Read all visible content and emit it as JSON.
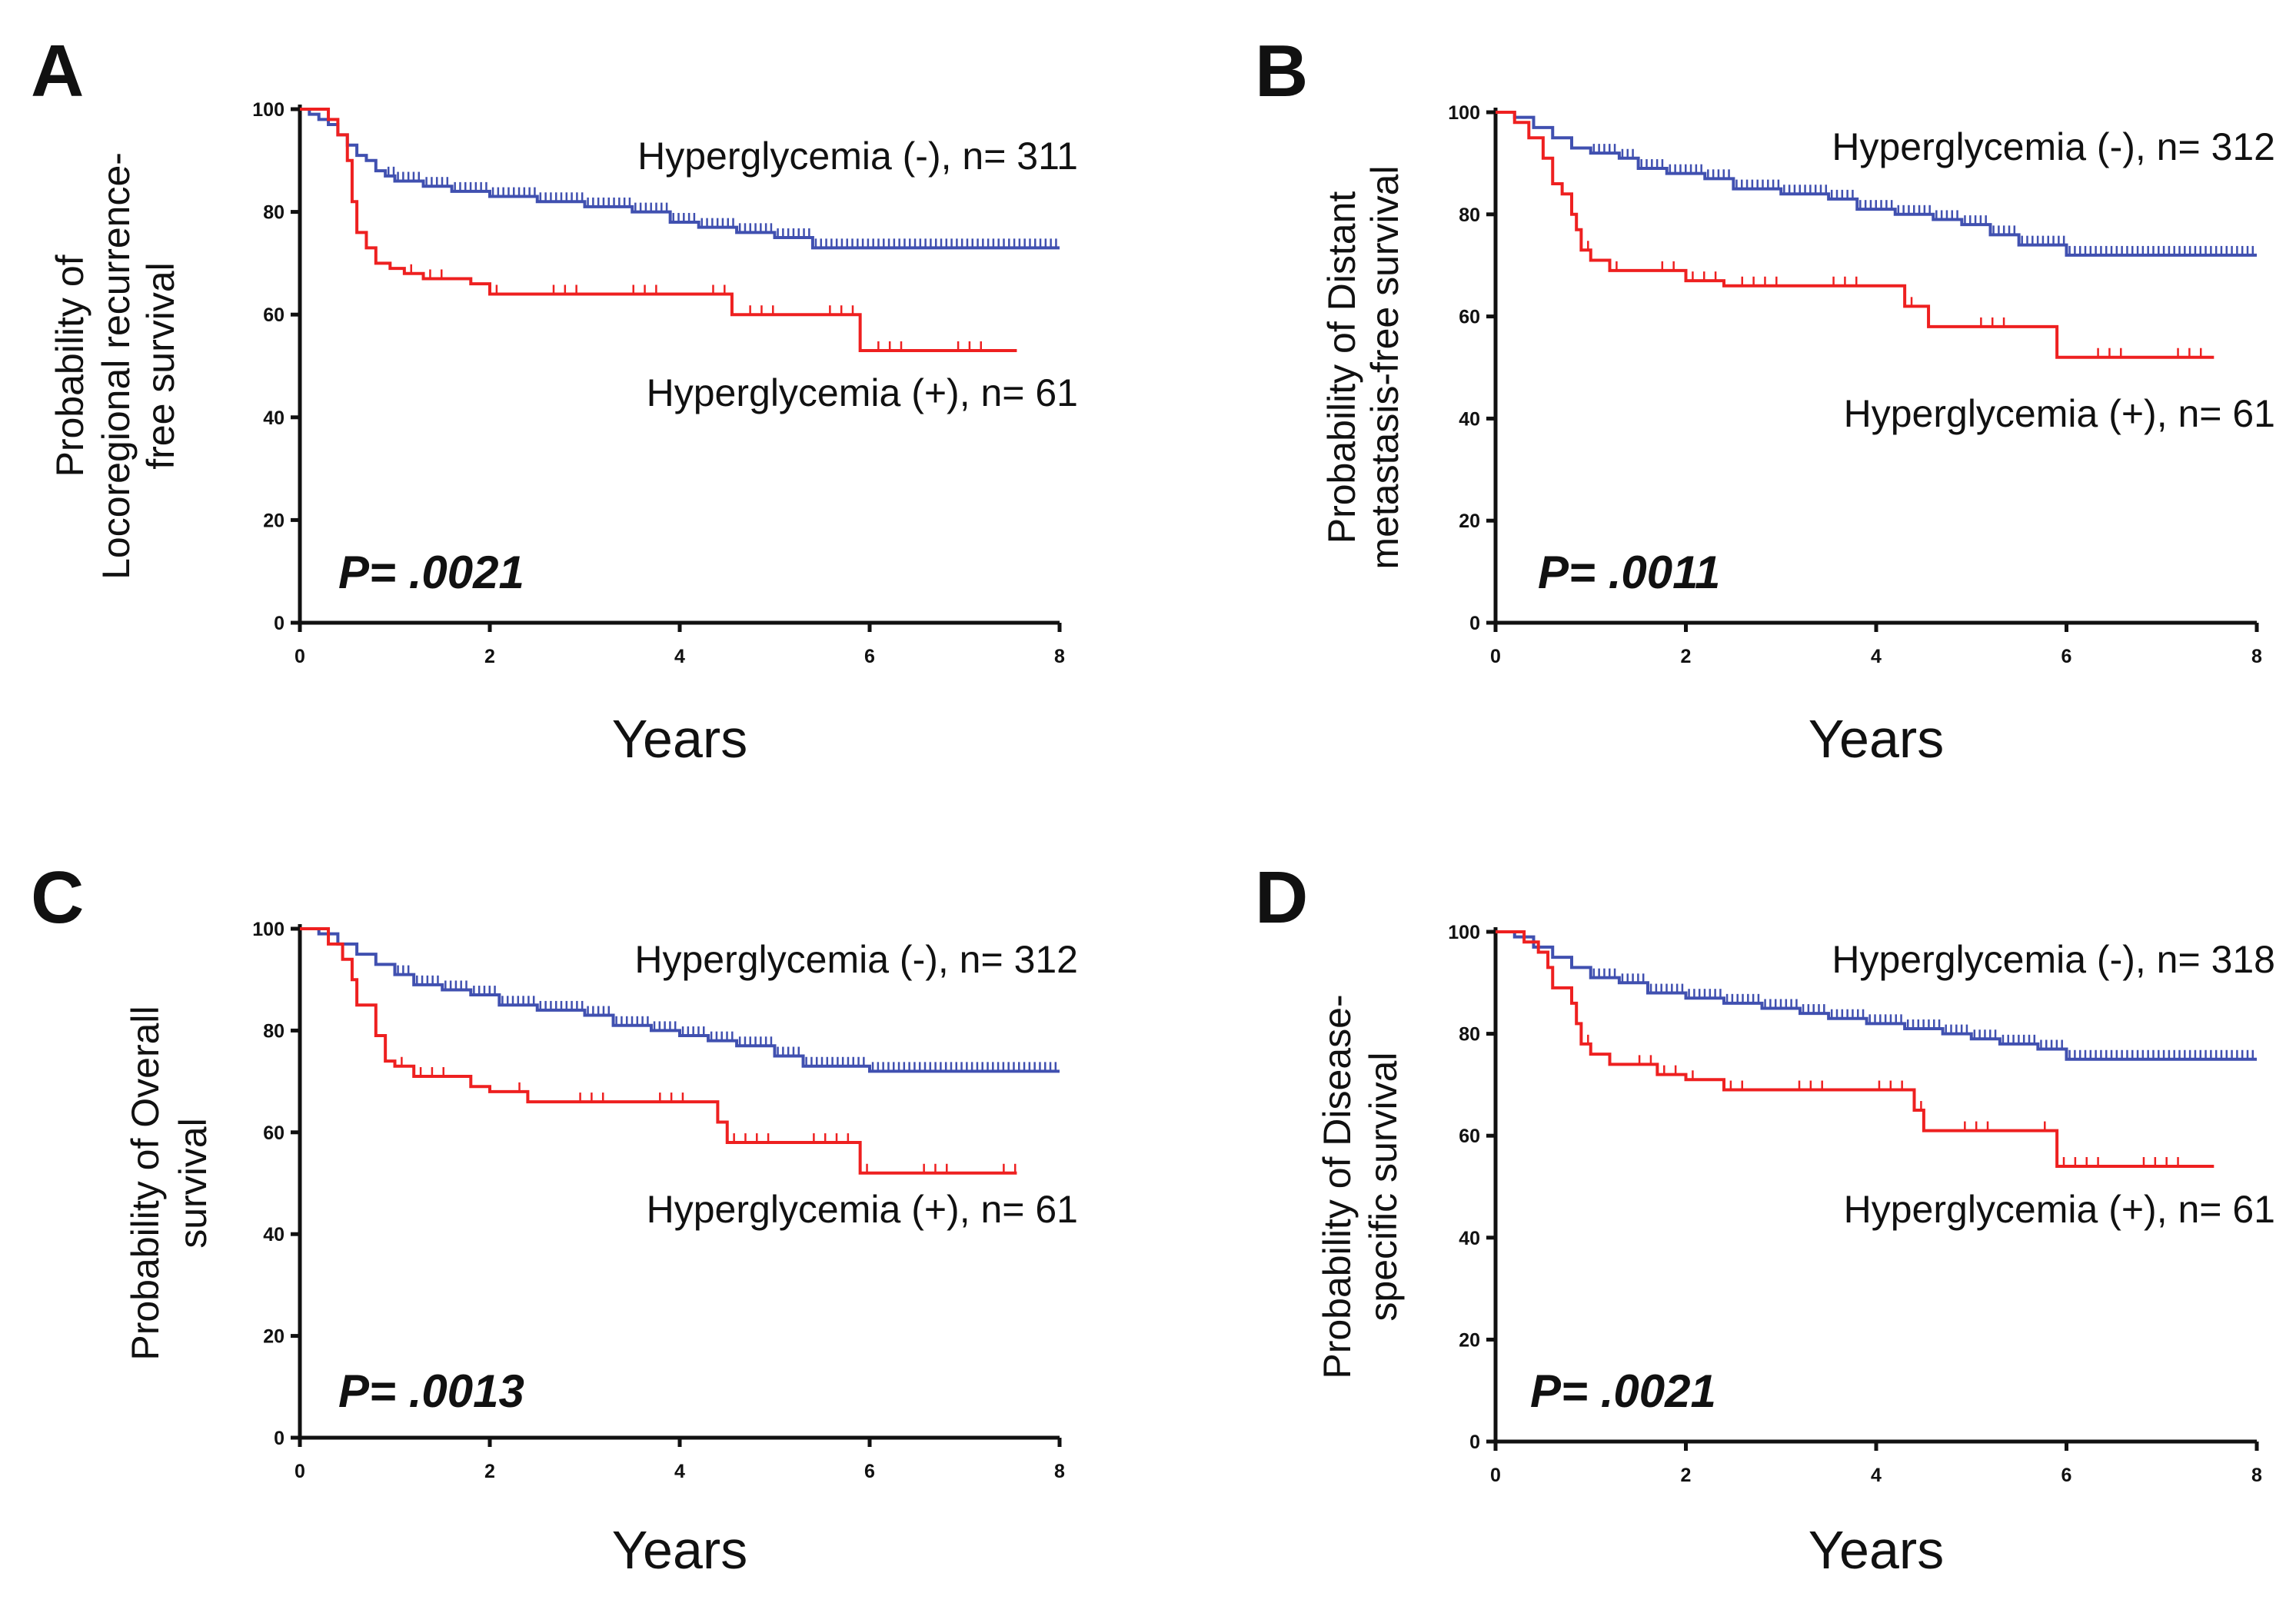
{
  "colors": {
    "neg": "#4050b0",
    "pos": "#ee2020",
    "axis": "#111111"
  },
  "chart_data": [
    {
      "type": "line",
      "panel": "A",
      "ylabel": [
        "Probability of",
        "Locoregional recurrence-",
        "free survival"
      ],
      "xlabel": "Years",
      "xlim": [
        0,
        8
      ],
      "ylim": [
        0,
        100
      ],
      "xticks": [
        0,
        2,
        4,
        6,
        8
      ],
      "yticks": [
        0,
        20,
        40,
        60,
        80,
        100
      ],
      "p_value": "P= .0021",
      "series": [
        {
          "name": "Hyperglycemia (-), n= 311",
          "color_key": "neg",
          "label_position": "top-right",
          "steps": [
            [
              0,
              100
            ],
            [
              0.1,
              99
            ],
            [
              0.2,
              98
            ],
            [
              0.3,
              97
            ],
            [
              0.4,
              95
            ],
            [
              0.5,
              93
            ],
            [
              0.6,
              91
            ],
            [
              0.7,
              90
            ],
            [
              0.8,
              88
            ],
            [
              0.9,
              87
            ],
            [
              1.0,
              86
            ],
            [
              1.3,
              85
            ],
            [
              1.6,
              84
            ],
            [
              2.0,
              83
            ],
            [
              2.5,
              82
            ],
            [
              3.0,
              81
            ],
            [
              3.5,
              80
            ],
            [
              3.9,
              78
            ],
            [
              4.2,
              77
            ],
            [
              4.6,
              76
            ],
            [
              5.0,
              75
            ],
            [
              5.4,
              73
            ],
            [
              8.0,
              73
            ]
          ],
          "end": 8.0
        },
        {
          "name": "Hyperglycemia (+), n= 61",
          "color_key": "pos",
          "label_position": "bottom-right",
          "steps": [
            [
              0,
              100
            ],
            [
              0.3,
              98
            ],
            [
              0.4,
              95
            ],
            [
              0.5,
              90
            ],
            [
              0.55,
              82
            ],
            [
              0.6,
              76
            ],
            [
              0.7,
              73
            ],
            [
              0.8,
              70
            ],
            [
              0.95,
              69
            ],
            [
              1.1,
              68
            ],
            [
              1.3,
              67
            ],
            [
              1.8,
              66
            ],
            [
              2.0,
              64
            ],
            [
              4.55,
              60
            ],
            [
              5.9,
              53
            ]
          ],
          "end": 7.55
        }
      ]
    },
    {
      "type": "line",
      "panel": "B",
      "ylabel": [
        "Probability of  Distant",
        "metastasis-free survival"
      ],
      "xlabel": "Years",
      "xlim": [
        0,
        8
      ],
      "ylim": [
        0,
        100
      ],
      "xticks": [
        0,
        2,
        4,
        6,
        8
      ],
      "yticks": [
        0,
        20,
        40,
        60,
        80,
        100
      ],
      "p_value": "P= .0011",
      "series": [
        {
          "name": "Hyperglycemia (-), n= 312",
          "color_key": "neg",
          "label_position": "top-right",
          "steps": [
            [
              0,
              100
            ],
            [
              0.2,
              99
            ],
            [
              0.4,
              97
            ],
            [
              0.6,
              95
            ],
            [
              0.8,
              93
            ],
            [
              1.0,
              92
            ],
            [
              1.3,
              91
            ],
            [
              1.5,
              89
            ],
            [
              1.8,
              88
            ],
            [
              2.2,
              87
            ],
            [
              2.5,
              85
            ],
            [
              3.0,
              84
            ],
            [
              3.5,
              83
            ],
            [
              3.8,
              81
            ],
            [
              4.2,
              80
            ],
            [
              4.6,
              79
            ],
            [
              4.9,
              78
            ],
            [
              5.2,
              76
            ],
            [
              5.5,
              74
            ],
            [
              6.0,
              72
            ],
            [
              8.0,
              72
            ]
          ],
          "end": 8.0
        },
        {
          "name": "Hyperglycemia (+), n= 61",
          "color_key": "pos",
          "label_position": "bottom-right",
          "steps": [
            [
              0,
              100
            ],
            [
              0.2,
              98
            ],
            [
              0.35,
              95
            ],
            [
              0.5,
              91
            ],
            [
              0.6,
              86
            ],
            [
              0.7,
              84
            ],
            [
              0.8,
              80
            ],
            [
              0.85,
              77
            ],
            [
              0.9,
              73
            ],
            [
              1.0,
              71
            ],
            [
              1.2,
              69
            ],
            [
              2.0,
              67
            ],
            [
              2.4,
              66
            ],
            [
              4.3,
              62
            ],
            [
              4.55,
              58
            ],
            [
              5.9,
              52
            ]
          ],
          "end": 7.55
        }
      ]
    },
    {
      "type": "line",
      "panel": "C",
      "ylabel": [
        "Probability of Overall",
        "survival"
      ],
      "xlabel": "Years",
      "xlim": [
        0,
        8
      ],
      "ylim": [
        0,
        100
      ],
      "xticks": [
        0,
        2,
        4,
        6,
        8
      ],
      "yticks": [
        0,
        20,
        40,
        60,
        80,
        100
      ],
      "p_value": "P= .0013",
      "series": [
        {
          "name": "Hyperglycemia (-), n= 312",
          "color_key": "neg",
          "label_position": "top-right",
          "steps": [
            [
              0,
              100
            ],
            [
              0.2,
              99
            ],
            [
              0.4,
              97
            ],
            [
              0.6,
              95
            ],
            [
              0.8,
              93
            ],
            [
              1.0,
              91
            ],
            [
              1.2,
              89
            ],
            [
              1.5,
              88
            ],
            [
              1.8,
              87
            ],
            [
              2.1,
              85
            ],
            [
              2.5,
              84
            ],
            [
              3.0,
              83
            ],
            [
              3.3,
              81
            ],
            [
              3.7,
              80
            ],
            [
              4.0,
              79
            ],
            [
              4.3,
              78
            ],
            [
              4.6,
              77
            ],
            [
              5.0,
              75
            ],
            [
              5.3,
              73
            ],
            [
              6.0,
              72
            ],
            [
              8.0,
              72
            ]
          ],
          "end": 8.0
        },
        {
          "name": "Hyperglycemia (+), n= 61",
          "color_key": "pos",
          "label_position": "bottom-right",
          "steps": [
            [
              0,
              100
            ],
            [
              0.3,
              97
            ],
            [
              0.45,
              94
            ],
            [
              0.55,
              90
            ],
            [
              0.6,
              85
            ],
            [
              0.8,
              79
            ],
            [
              0.9,
              74
            ],
            [
              1.0,
              73
            ],
            [
              1.2,
              71
            ],
            [
              1.8,
              69
            ],
            [
              2.0,
              68
            ],
            [
              2.4,
              66
            ],
            [
              4.4,
              62
            ],
            [
              4.5,
              58
            ],
            [
              5.9,
              52
            ]
          ],
          "end": 7.55
        }
      ]
    },
    {
      "type": "line",
      "panel": "D",
      "ylabel": [
        "Probability of Disease-",
        "specific survival"
      ],
      "xlabel": "Years",
      "xlim": [
        0,
        8
      ],
      "ylim": [
        0,
        100
      ],
      "xticks": [
        0,
        2,
        4,
        6,
        8
      ],
      "yticks": [
        0,
        20,
        40,
        60,
        80,
        100
      ],
      "p_value": "P= .0021",
      "series": [
        {
          "name": "Hyperglycemia (-), n= 318",
          "color_key": "neg",
          "label_position": "top-right",
          "steps": [
            [
              0,
              100
            ],
            [
              0.2,
              99
            ],
            [
              0.4,
              97
            ],
            [
              0.6,
              95
            ],
            [
              0.8,
              93
            ],
            [
              1.0,
              91
            ],
            [
              1.3,
              90
            ],
            [
              1.6,
              88
            ],
            [
              2.0,
              87
            ],
            [
              2.4,
              86
            ],
            [
              2.8,
              85
            ],
            [
              3.2,
              84
            ],
            [
              3.5,
              83
            ],
            [
              3.9,
              82
            ],
            [
              4.3,
              81
            ],
            [
              4.7,
              80
            ],
            [
              5.0,
              79
            ],
            [
              5.3,
              78
            ],
            [
              5.7,
              77
            ],
            [
              6.0,
              75
            ],
            [
              8.0,
              75
            ]
          ],
          "end": 8.0
        },
        {
          "name": "Hyperglycemia (+), n= 61",
          "color_key": "pos",
          "label_position": "bottom-right",
          "steps": [
            [
              0,
              100
            ],
            [
              0.3,
              98
            ],
            [
              0.45,
              96
            ],
            [
              0.55,
              93
            ],
            [
              0.6,
              89
            ],
            [
              0.8,
              86
            ],
            [
              0.85,
              82
            ],
            [
              0.9,
              78
            ],
            [
              1.0,
              76
            ],
            [
              1.2,
              74
            ],
            [
              1.7,
              72
            ],
            [
              2.0,
              71
            ],
            [
              2.4,
              69
            ],
            [
              4.4,
              65
            ],
            [
              4.5,
              61
            ],
            [
              5.9,
              54
            ]
          ],
          "end": 7.55
        }
      ]
    }
  ]
}
